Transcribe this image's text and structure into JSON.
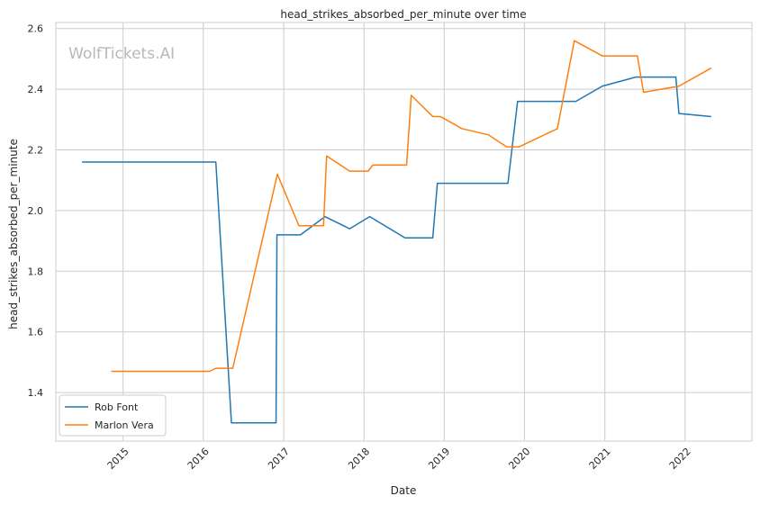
{
  "watermark": "WolfTickets.AI",
  "chart_data": {
    "type": "line",
    "title": "head_strikes_absorbed_per_minute over time",
    "xlabel": "Date",
    "ylabel": "head_strikes_absorbed_per_minute",
    "xlim": [
      "2014-03-01",
      "2022-11-01"
    ],
    "ylim": [
      1.24,
      2.62
    ],
    "x_ticks": [
      "2015-01-01",
      "2016-01-01",
      "2017-01-01",
      "2018-01-01",
      "2019-01-01",
      "2020-01-01",
      "2021-01-01",
      "2022-01-01"
    ],
    "x_tick_labels": [
      "2015",
      "2016",
      "2017",
      "2018",
      "2019",
      "2020",
      "2021",
      "2022"
    ],
    "y_ticks": [
      1.4,
      1.6,
      1.8,
      2.0,
      2.2,
      2.4,
      2.6
    ],
    "y_tick_labels": [
      "1.4",
      "1.6",
      "1.8",
      "2.0",
      "2.2",
      "2.4",
      "2.6"
    ],
    "grid": true,
    "legend_position": "bottom-left",
    "series": [
      {
        "name": "Rob Font",
        "color": "#1f77b4",
        "points": [
          [
            "2014-06-28",
            2.16
          ],
          [
            "2016-02-27",
            2.16
          ],
          [
            "2016-05-08",
            1.3
          ],
          [
            "2016-11-27",
            1.3
          ],
          [
            "2016-12-01",
            1.92
          ],
          [
            "2017-03-18",
            1.92
          ],
          [
            "2017-07-08",
            1.98
          ],
          [
            "2017-10-28",
            1.94
          ],
          [
            "2018-01-27",
            1.98
          ],
          [
            "2018-07-07",
            1.91
          ],
          [
            "2018-11-10",
            1.91
          ],
          [
            "2018-12-01",
            2.09
          ],
          [
            "2019-10-18",
            2.09
          ],
          [
            "2019-12-01",
            2.36
          ],
          [
            "2020-08-22",
            2.36
          ],
          [
            "2020-12-20",
            2.41
          ],
          [
            "2021-05-22",
            2.44
          ],
          [
            "2021-11-20",
            2.44
          ],
          [
            "2021-12-04",
            2.32
          ],
          [
            "2022-04-30",
            2.31
          ]
        ]
      },
      {
        "name": "Marlon Vera",
        "color": "#ff7f0e",
        "points": [
          [
            "2014-11-08",
            1.47
          ],
          [
            "2016-01-30",
            1.47
          ],
          [
            "2016-02-27",
            1.48
          ],
          [
            "2016-05-14",
            1.48
          ],
          [
            "2016-12-03",
            2.12
          ],
          [
            "2017-03-11",
            1.95
          ],
          [
            "2017-07-01",
            1.95
          ],
          [
            "2017-07-15",
            2.18
          ],
          [
            "2017-10-28",
            2.13
          ],
          [
            "2018-01-20",
            2.13
          ],
          [
            "2018-02-10",
            2.15
          ],
          [
            "2018-07-14",
            2.15
          ],
          [
            "2018-08-04",
            2.38
          ],
          [
            "2018-11-10",
            2.31
          ],
          [
            "2018-12-15",
            2.31
          ],
          [
            "2019-03-23",
            2.27
          ],
          [
            "2019-07-20",
            2.25
          ],
          [
            "2019-10-12",
            2.21
          ],
          [
            "2019-12-07",
            2.21
          ],
          [
            "2020-05-30",
            2.27
          ],
          [
            "2020-08-15",
            2.56
          ],
          [
            "2020-12-20",
            2.51
          ],
          [
            "2021-05-29",
            2.51
          ],
          [
            "2021-06-26",
            2.39
          ],
          [
            "2021-12-04",
            2.41
          ],
          [
            "2022-04-30",
            2.47
          ]
        ]
      }
    ]
  }
}
